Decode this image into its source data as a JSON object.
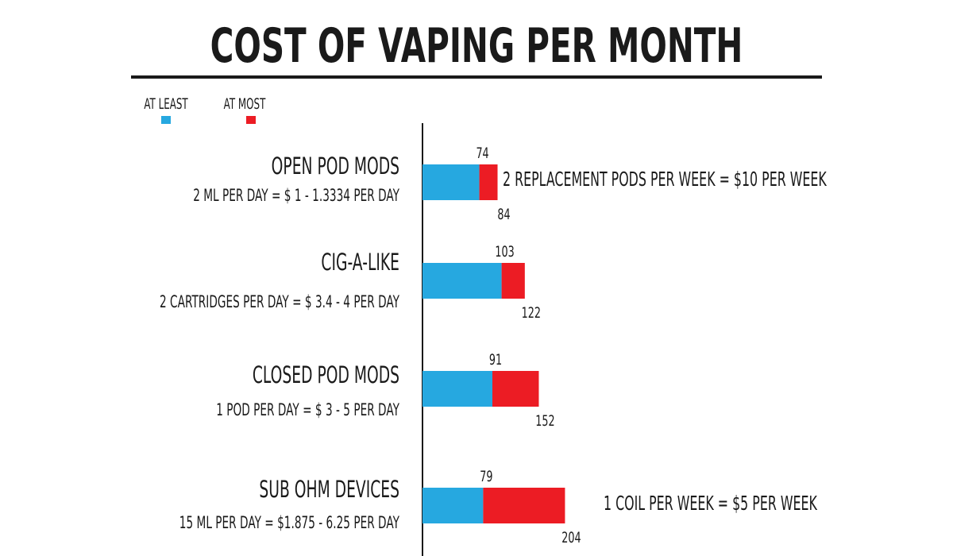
{
  "chart_data": {
    "type": "bar",
    "title": "COST OF VAPING PER MONTH",
    "legend": {
      "placement": "top-left",
      "items": [
        {
          "label": "AT LEAST",
          "color": "#26a8e0"
        },
        {
          "label": "AT MOST",
          "color": "#ec1c24"
        }
      ]
    },
    "categories": [
      {
        "name": "OPEN POD MODS",
        "subtitle": "2 ML PER DAY = $ 1 - 1.3334 PER DAY",
        "note": "2 REPLACEMENT PODS PER WEEK = $10 PER WEEK"
      },
      {
        "name": "CIG-A-LIKE",
        "subtitle": "2 CARTRIDGES PER DAY = $ 3.4 - 4 PER DAY",
        "note": ""
      },
      {
        "name": "CLOSED POD MODS",
        "subtitle": "1 POD PER DAY = $ 3 - 5 PER DAY",
        "note": ""
      },
      {
        "name": "SUB OHM DEVICES",
        "subtitle": "15 ML PER DAY = $1.875 - 6.25 PER DAY",
        "note": "1 COIL PER WEEK = $5 PER WEEK"
      }
    ],
    "series": [
      {
        "name": "AT LEAST",
        "color": "#26a8e0",
        "values": [
          74,
          103,
          91,
          79
        ]
      },
      {
        "name": "AT MOST",
        "color": "#ec1c24",
        "values": [
          84,
          122,
          152,
          204
        ]
      }
    ],
    "xlim": [
      0,
      300
    ],
    "orientation": "horizontal",
    "grid": false
  }
}
